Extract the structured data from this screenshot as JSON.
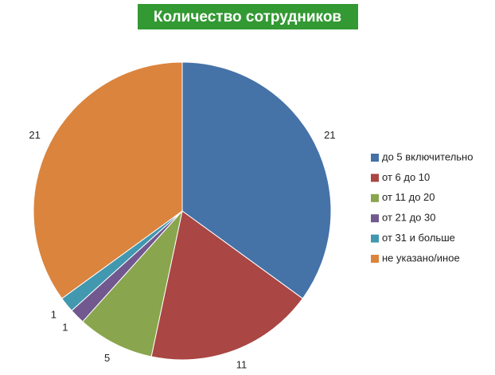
{
  "chart_data": {
    "type": "pie",
    "title": "Количество сотрудников",
    "categories": [
      "до 5 включительно",
      "от 6 до 10",
      "от 11 до 20",
      "от 21 до 30",
      "от 31 и больше",
      "не указано/иное"
    ],
    "values": [
      21,
      11,
      5,
      1,
      1,
      21
    ],
    "colors": [
      "#4572a7",
      "#aa4643",
      "#89a54e",
      "#71588f",
      "#4198af",
      "#db843d"
    ],
    "legend": "right"
  }
}
